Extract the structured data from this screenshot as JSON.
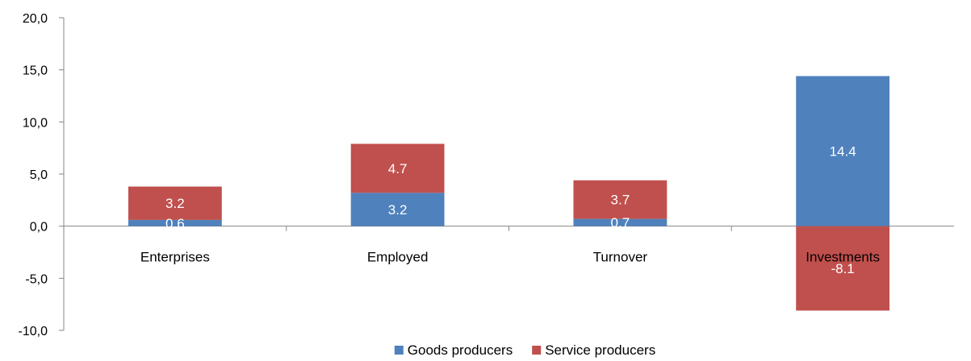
{
  "chart_data": {
    "type": "bar",
    "stacked": true,
    "categories": [
      "Enterprises",
      "Employed",
      "Turnover",
      "Investments"
    ],
    "series": [
      {
        "name": "Goods producers",
        "values": [
          0.6,
          3.2,
          0.7,
          14.4
        ],
        "labels": [
          "0.6",
          "3.2",
          "0.7",
          "14.4"
        ],
        "color": "#4f81bd"
      },
      {
        "name": "Service producers",
        "values": [
          3.2,
          4.7,
          3.7,
          -8.1
        ],
        "labels": [
          "3.2",
          "4.7",
          "3.7",
          "-8.1"
        ],
        "color": "#c0504d"
      }
    ],
    "ylim": [
      -10,
      20
    ],
    "yticks": [
      -10,
      -5,
      0,
      5,
      10,
      15,
      20
    ],
    "ytick_labels": [
      "-10,0",
      "-5,0",
      "0,0",
      "5,0",
      "10,0",
      "15,0",
      "20,0"
    ],
    "grid": false,
    "legend_position": "bottom"
  }
}
